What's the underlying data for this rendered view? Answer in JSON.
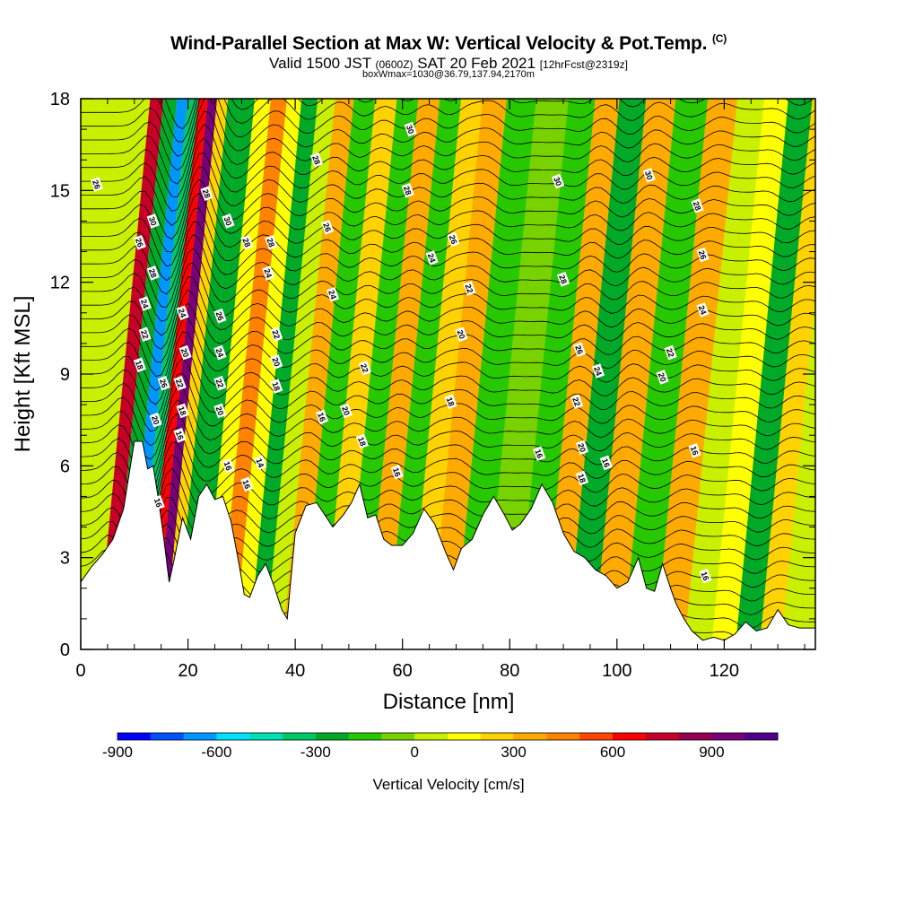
{
  "title": {
    "main": "Wind-Parallel Section at Max W: Vertical Velocity & Pot.Temp.",
    "copyright": "(C)",
    "valid_prefix": "Valid 1500 JST",
    "valid_utc": "(0600Z)",
    "valid_date": "SAT 20 Feb 2021",
    "forecast": "[12hrFcst@2319z]",
    "box_info": "boxWmax=1030@36.79,137.94,2170m"
  },
  "chart_data": {
    "type": "heatmap",
    "xlabel": "Distance [nm]",
    "ylabel": "Height [Kft MSL]",
    "xlim": [
      0,
      137
    ],
    "ylim": [
      0,
      18
    ],
    "x_ticks": [
      0,
      20,
      40,
      60,
      80,
      100,
      120
    ],
    "y_ticks": [
      0,
      3,
      6,
      9,
      12,
      15,
      18
    ],
    "colorbar": {
      "label": "Vertical Velocity [cm/s]",
      "range": [
        -900,
        1100
      ],
      "step": 100,
      "tick_labels": [
        -900,
        -600,
        -300,
        0,
        300,
        600,
        900
      ],
      "colors": [
        "#0000ff",
        "#0050ff",
        "#0096ff",
        "#00e0ff",
        "#00e0b4",
        "#00c864",
        "#00aa28",
        "#28c800",
        "#78d200",
        "#c8f000",
        "#ffff00",
        "#ffd200",
        "#ffaa00",
        "#ff8200",
        "#ff4600",
        "#ff0000",
        "#c80028",
        "#960050",
        "#780078",
        "#50008c"
      ]
    },
    "velocity_bands": [
      {
        "x": 9,
        "w": 700
      },
      {
        "x": 12,
        "w": -300
      },
      {
        "x": 14,
        "w": -700
      },
      {
        "x": 16,
        "w": -400
      },
      {
        "x": 18,
        "w": 600
      },
      {
        "x": 19.5,
        "w": 950
      },
      {
        "x": 21.5,
        "w": 250
      },
      {
        "x": 23.5,
        "w": -300
      },
      {
        "x": 26,
        "w": -250
      },
      {
        "x": 29,
        "w": 100
      },
      {
        "x": 32,
        "w": 450
      },
      {
        "x": 35,
        "w": 100
      },
      {
        "x": 37.5,
        "w": -300
      },
      {
        "x": 41,
        "w": 50
      },
      {
        "x": 44,
        "w": 350
      },
      {
        "x": 48,
        "w": -200
      },
      {
        "x": 52,
        "w": 250
      },
      {
        "x": 56,
        "w": -150
      },
      {
        "x": 60,
        "w": 300
      },
      {
        "x": 64,
        "w": -150
      },
      {
        "x": 68,
        "w": 250
      },
      {
        "x": 72,
        "w": 350
      },
      {
        "x": 77,
        "w": -150
      },
      {
        "x": 83,
        "w": -80
      },
      {
        "x": 89,
        "w": -200
      },
      {
        "x": 93,
        "w": 300
      },
      {
        "x": 98,
        "w": -300
      },
      {
        "x": 103,
        "w": 350
      },
      {
        "x": 109,
        "w": -150
      },
      {
        "x": 115,
        "w": 300
      },
      {
        "x": 120,
        "w": 80
      },
      {
        "x": 125,
        "w": 150
      },
      {
        "x": 129,
        "w": -250
      },
      {
        "x": 134,
        "w": 200
      }
    ],
    "terrain_kft": [
      [
        0,
        2.2
      ],
      [
        2,
        2.7
      ],
      [
        4,
        3.1
      ],
      [
        6,
        3.6
      ],
      [
        8,
        4.6
      ],
      [
        10,
        6.8
      ],
      [
        11.5,
        6.8
      ],
      [
        12.5,
        5.9
      ],
      [
        13.5,
        6.0
      ],
      [
        14.5,
        4.9
      ],
      [
        15.5,
        3.6
      ],
      [
        16.5,
        2.2
      ],
      [
        17.5,
        3.0
      ],
      [
        19,
        4.3
      ],
      [
        20.5,
        3.6
      ],
      [
        22,
        5.0
      ],
      [
        23.5,
        5.4
      ],
      [
        25,
        4.9
      ],
      [
        26.5,
        5.0
      ],
      [
        28,
        4.2
      ],
      [
        29.5,
        2.8
      ],
      [
        30.5,
        1.8
      ],
      [
        31.5,
        1.7
      ],
      [
        33,
        2.4
      ],
      [
        34.5,
        2.8
      ],
      [
        36,
        2.1
      ],
      [
        37.5,
        1.3
      ],
      [
        38.5,
        1.0
      ],
      [
        40,
        3.8
      ],
      [
        42,
        4.7
      ],
      [
        44,
        4.8
      ],
      [
        45.5,
        4.4
      ],
      [
        47,
        4.0
      ],
      [
        49,
        4.4
      ],
      [
        50.5,
        4.8
      ],
      [
        52,
        5.4
      ],
      [
        53.5,
        4.3
      ],
      [
        55,
        4.4
      ],
      [
        56.5,
        3.6
      ],
      [
        58,
        3.4
      ],
      [
        60,
        3.4
      ],
      [
        62,
        3.8
      ],
      [
        64,
        4.6
      ],
      [
        66,
        4.1
      ],
      [
        68,
        3.2
      ],
      [
        69.5,
        2.6
      ],
      [
        71,
        3.3
      ],
      [
        73,
        3.6
      ],
      [
        75,
        4.4
      ],
      [
        77,
        5.0
      ],
      [
        79,
        4.4
      ],
      [
        80.5,
        3.9
      ],
      [
        82,
        4.1
      ],
      [
        84,
        4.6
      ],
      [
        86,
        5.4
      ],
      [
        88,
        4.8
      ],
      [
        90,
        3.8
      ],
      [
        92,
        3.2
      ],
      [
        94,
        3.0
      ],
      [
        96,
        2.6
      ],
      [
        98,
        2.4
      ],
      [
        100,
        2.0
      ],
      [
        102,
        2.2
      ],
      [
        104,
        3.0
      ],
      [
        105.5,
        2.0
      ],
      [
        107,
        1.9
      ],
      [
        108.5,
        2.8
      ],
      [
        110,
        2.0
      ],
      [
        111,
        1.5
      ],
      [
        112.5,
        1.0
      ],
      [
        114,
        0.6
      ],
      [
        116,
        0.3
      ],
      [
        118,
        0.4
      ],
      [
        120,
        0.3
      ],
      [
        122,
        0.5
      ],
      [
        124,
        0.9
      ],
      [
        126,
        0.6
      ],
      [
        128,
        0.7
      ],
      [
        130,
        1.3
      ],
      [
        132,
        0.8
      ],
      [
        134,
        0.7
      ],
      [
        137,
        0.7
      ]
    ],
    "theta_contour_labels": [
      {
        "text": "26",
        "x": 3,
        "y": 15.2
      },
      {
        "text": "30",
        "x": 13.5,
        "y": 14
      },
      {
        "text": "26",
        "x": 11,
        "y": 13.3
      },
      {
        "text": "28",
        "x": 13.5,
        "y": 12.3
      },
      {
        "text": "24",
        "x": 12,
        "y": 11.3
      },
      {
        "text": "22",
        "x": 12,
        "y": 10.3
      },
      {
        "text": "18",
        "x": 11,
        "y": 9.3
      },
      {
        "text": "26",
        "x": 15.5,
        "y": 8.7
      },
      {
        "text": "20",
        "x": 14,
        "y": 7.5
      },
      {
        "text": "16",
        "x": 14.5,
        "y": 4.8
      },
      {
        "text": "24",
        "x": 19,
        "y": 11
      },
      {
        "text": "20",
        "x": 19.5,
        "y": 9.7
      },
      {
        "text": "22",
        "x": 18.5,
        "y": 8.7
      },
      {
        "text": "18",
        "x": 19,
        "y": 7.8
      },
      {
        "text": "16",
        "x": 18.5,
        "y": 7
      },
      {
        "text": "28",
        "x": 23.5,
        "y": 14.9
      },
      {
        "text": "30",
        "x": 27.5,
        "y": 14
      },
      {
        "text": "26",
        "x": 26,
        "y": 10.9
      },
      {
        "text": "24",
        "x": 26,
        "y": 9.7
      },
      {
        "text": "22",
        "x": 26,
        "y": 8.7
      },
      {
        "text": "20",
        "x": 26,
        "y": 7.8
      },
      {
        "text": "16",
        "x": 27.5,
        "y": 6
      },
      {
        "text": "16",
        "x": 31,
        "y": 5.4
      },
      {
        "text": "14",
        "x": 33.5,
        "y": 6.1
      },
      {
        "text": "28",
        "x": 31,
        "y": 13.3
      },
      {
        "text": "28",
        "x": 35.5,
        "y": 13.3
      },
      {
        "text": "24",
        "x": 35,
        "y": 12.3
      },
      {
        "text": "22",
        "x": 36.5,
        "y": 10.3
      },
      {
        "text": "20",
        "x": 36.5,
        "y": 9.4
      },
      {
        "text": "18",
        "x": 36.5,
        "y": 8.6
      },
      {
        "text": "28",
        "x": 44,
        "y": 16
      },
      {
        "text": "26",
        "x": 46,
        "y": 13.8
      },
      {
        "text": "24",
        "x": 47,
        "y": 11.6
      },
      {
        "text": "16",
        "x": 45,
        "y": 7.6
      },
      {
        "text": "20",
        "x": 49.5,
        "y": 7.8
      },
      {
        "text": "22",
        "x": 53,
        "y": 9.2
      },
      {
        "text": "18",
        "x": 52.5,
        "y": 6.8
      },
      {
        "text": "16",
        "x": 59,
        "y": 5.8
      },
      {
        "text": "30",
        "x": 61.5,
        "y": 17
      },
      {
        "text": "28",
        "x": 61,
        "y": 15
      },
      {
        "text": "24",
        "x": 65.5,
        "y": 12.8
      },
      {
        "text": "26",
        "x": 69.5,
        "y": 13.4
      },
      {
        "text": "22",
        "x": 72.5,
        "y": 11.8
      },
      {
        "text": "20",
        "x": 71,
        "y": 10.3
      },
      {
        "text": "18",
        "x": 69,
        "y": 8.1
      },
      {
        "text": "16",
        "x": 85.5,
        "y": 6.4
      },
      {
        "text": "30",
        "x": 89,
        "y": 15.3
      },
      {
        "text": "28",
        "x": 90,
        "y": 12.1
      },
      {
        "text": "26",
        "x": 93,
        "y": 9.8
      },
      {
        "text": "24",
        "x": 96.5,
        "y": 9.1
      },
      {
        "text": "22",
        "x": 92.5,
        "y": 8.1
      },
      {
        "text": "20",
        "x": 93.5,
        "y": 6.6
      },
      {
        "text": "18",
        "x": 93.5,
        "y": 5.6
      },
      {
        "text": "16",
        "x": 98,
        "y": 6.1
      },
      {
        "text": "30",
        "x": 106,
        "y": 15.5
      },
      {
        "text": "28",
        "x": 115,
        "y": 14.5
      },
      {
        "text": "26",
        "x": 116,
        "y": 12.9
      },
      {
        "text": "24",
        "x": 116,
        "y": 11.1
      },
      {
        "text": "22",
        "x": 110,
        "y": 9.7
      },
      {
        "text": "20",
        "x": 108.5,
        "y": 8.9
      },
      {
        "text": "16",
        "x": 114.5,
        "y": 6.5
      },
      {
        "text": "16",
        "x": 116.5,
        "y": 2.4
      }
    ]
  }
}
